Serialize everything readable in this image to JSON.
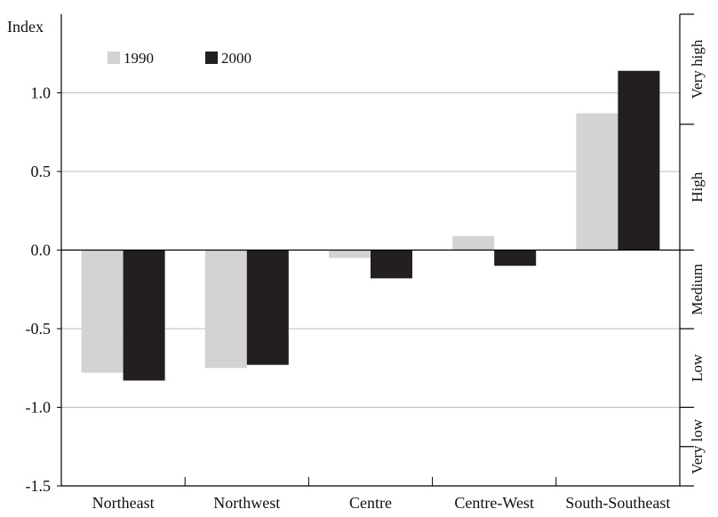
{
  "chart_data": {
    "type": "bar",
    "ylabel": "Index",
    "categories": [
      "Northeast",
      "Northwest",
      "Centre",
      "Centre-West",
      "South-Southeast"
    ],
    "series": [
      {
        "name": "1990",
        "color": "#d3d3d3",
        "values": [
          -0.78,
          -0.75,
          -0.05,
          0.09,
          0.87
        ]
      },
      {
        "name": "2000",
        "color": "#231f20",
        "values": [
          -0.83,
          -0.73,
          -0.18,
          -0.1,
          1.14
        ]
      }
    ],
    "ylim": [
      -1.5,
      1.5
    ],
    "yticks": [
      -1.5,
      -1.0,
      -0.5,
      0.0,
      0.5,
      1.0
    ],
    "ytick_labels": [
      "-1.5",
      "-1.0",
      "-0.5",
      "0.0",
      "0.5",
      "1.0"
    ],
    "grid": true,
    "legend_position": "top-left",
    "right_axis": {
      "bands": [
        {
          "label": "Very low",
          "from": -1.5,
          "to": -1.0
        },
        {
          "label": "Low",
          "from": -1.0,
          "to": -0.5
        },
        {
          "label": "Medium",
          "from": -0.5,
          "to": 0.0
        },
        {
          "label": "High",
          "from": 0.0,
          "to": 0.8
        },
        {
          "label": "Very high",
          "from": 0.8,
          "to": 1.5
        }
      ],
      "ticks": [
        -1.5,
        -1.25,
        -1.0,
        -0.5,
        0.0,
        0.8,
        1.5
      ]
    }
  }
}
